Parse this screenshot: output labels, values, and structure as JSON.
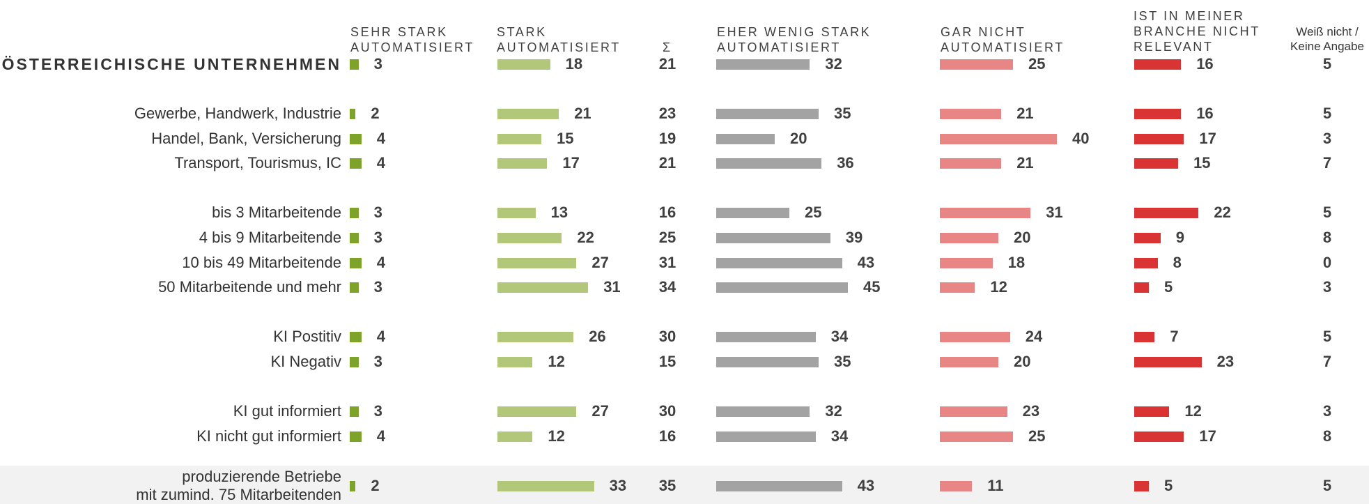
{
  "colors": {
    "sehr_stark": "#7ea32a",
    "stark": "#b2c779",
    "eher_wenig": "#a3a3a3",
    "gar_nicht": "#e88585",
    "nicht_relevant": "#d93333",
    "highlight_bg": "#f2f2f2"
  },
  "headers": {
    "sehr_stark": "SEHR STARK\nAUTOMATISIERT",
    "stark": "STARK\nAUTOMATISIERT",
    "sum": "Σ",
    "eher_wenig": "EHER WENIG STARK\nAUTOMATISIERT",
    "gar_nicht": "GAR NICHT\nAUTOMATISIERT",
    "nicht_relevant": "IST IN MEINER\nBRANCHE NICHT\nRELEVANT",
    "weiss_nicht": "Weiß nicht /\nKeine Angabe"
  },
  "chart_data": {
    "type": "bar",
    "orientation": "horizontal",
    "categories": [
      "ÖSTERREICHISCHE UNTERNEHMEN",
      "Gewerbe, Handwerk, Industrie",
      "Handel, Bank, Versicherung",
      "Transport, Tourismus, IC",
      "bis 3 Mitarbeitende",
      "4 bis 9 Mitarbeitende",
      "10 bis 49 Mitarbeitende",
      "50 Mitarbeitende und mehr",
      "KI Postitiv",
      "KI Negativ",
      "KI gut informiert",
      "KI nicht gut informiert",
      "produzierende Betriebe\nmit zumind. 75 Mitarbeitenden"
    ],
    "series": [
      {
        "name": "SEHR STARK AUTOMATISIERT",
        "values": [
          3,
          2,
          4,
          4,
          3,
          3,
          4,
          3,
          4,
          3,
          3,
          4,
          2
        ]
      },
      {
        "name": "STARK AUTOMATISIERT",
        "values": [
          18,
          21,
          15,
          17,
          13,
          22,
          27,
          31,
          26,
          12,
          27,
          12,
          33
        ]
      },
      {
        "name": "EHER WENIG STARK AUTOMATISIERT",
        "values": [
          32,
          35,
          20,
          36,
          25,
          39,
          43,
          45,
          34,
          35,
          32,
          34,
          43
        ]
      },
      {
        "name": "GAR NICHT AUTOMATISIERT",
        "values": [
          25,
          21,
          40,
          21,
          31,
          20,
          18,
          12,
          24,
          20,
          23,
          25,
          11
        ]
      },
      {
        "name": "IST IN MEINER BRANCHE NICHT RELEVANT",
        "values": [
          16,
          16,
          17,
          15,
          22,
          9,
          8,
          5,
          7,
          23,
          12,
          17,
          5
        ]
      }
    ],
    "sum": [
      21,
      23,
      19,
      21,
      16,
      25,
      31,
      34,
      30,
      15,
      30,
      16,
      35
    ],
    "weiss_nicht": [
      5,
      5,
      3,
      7,
      5,
      8,
      0,
      3,
      5,
      7,
      3,
      8,
      5
    ]
  }
}
